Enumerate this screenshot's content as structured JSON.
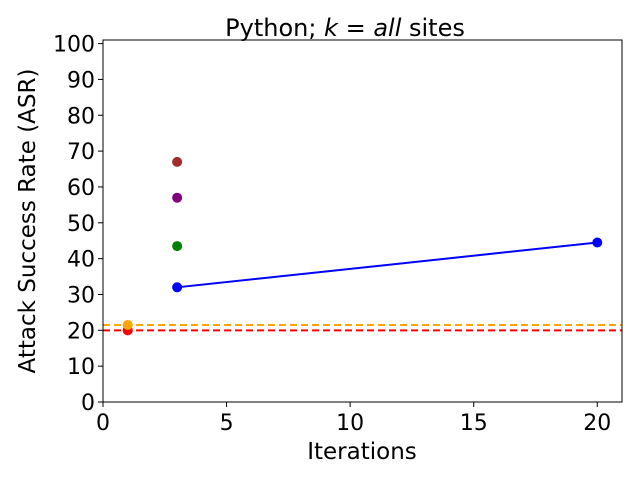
{
  "chart_data": {
    "type": "scatter",
    "title": {
      "prefix": "Python; ",
      "var": "k",
      "eq": " = ",
      "val": "all",
      "suffix": " sites"
    },
    "xlabel": "Iterations",
    "ylabel": "Attack Success Rate (ASR)",
    "xlim": [
      0,
      21
    ],
    "ylim": [
      0,
      101
    ],
    "xticks": [
      0,
      5,
      10,
      15,
      20
    ],
    "yticks": [
      0,
      10,
      20,
      30,
      40,
      50,
      60,
      70,
      80,
      90,
      100
    ],
    "grid": false,
    "series": [
      {
        "color": "#0000ff",
        "style": "solid-with-markers",
        "points": [
          [
            3,
            32
          ],
          [
            20,
            44.5
          ]
        ]
      },
      {
        "color": "#a52a2a",
        "style": "marker",
        "points": [
          [
            3,
            67
          ]
        ]
      },
      {
        "color": "#800080",
        "style": "marker",
        "points": [
          [
            3,
            57
          ]
        ]
      },
      {
        "color": "#008000",
        "style": "marker",
        "points": [
          [
            3,
            43.5
          ]
        ]
      },
      {
        "color": "#ff0000",
        "style": "dashed-hline",
        "y": 20,
        "points": [
          [
            1,
            20
          ]
        ]
      },
      {
        "color": "#ffa500",
        "style": "dashed-hline",
        "y": 21.5,
        "points": [
          [
            1,
            21.5
          ]
        ]
      }
    ]
  }
}
